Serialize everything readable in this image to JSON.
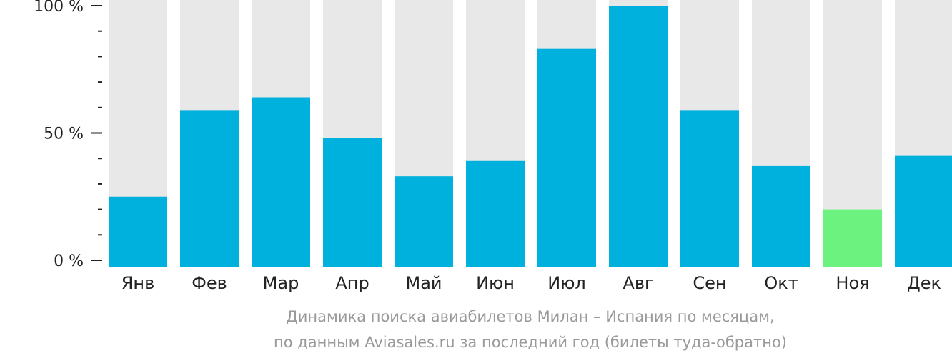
{
  "chart_data": {
    "type": "bar",
    "categories": [
      "Янв",
      "Фев",
      "Мар",
      "Апр",
      "Май",
      "Июн",
      "Июл",
      "Авг",
      "Сен",
      "Окт",
      "Ноя",
      "Дек"
    ],
    "values": [
      25,
      59,
      64,
      48,
      33,
      39,
      83,
      100,
      59,
      37,
      20,
      41
    ],
    "ylim": [
      0,
      100
    ],
    "yticks": [
      "0 %",
      "50 %",
      "100 %"
    ],
    "highlight_index": 10,
    "caption_line1": "Динамика поиска авиабилетов Милан – Испания по месяцам,",
    "caption_line2": "по данным Aviasales.ru за последний год (билеты туда-обратно)",
    "colors": {
      "bar": "#00b0dd",
      "highlight": "#6cf27f",
      "track": "#e8e8e8",
      "axis": "#222222",
      "caption": "#9a9a9a"
    }
  }
}
